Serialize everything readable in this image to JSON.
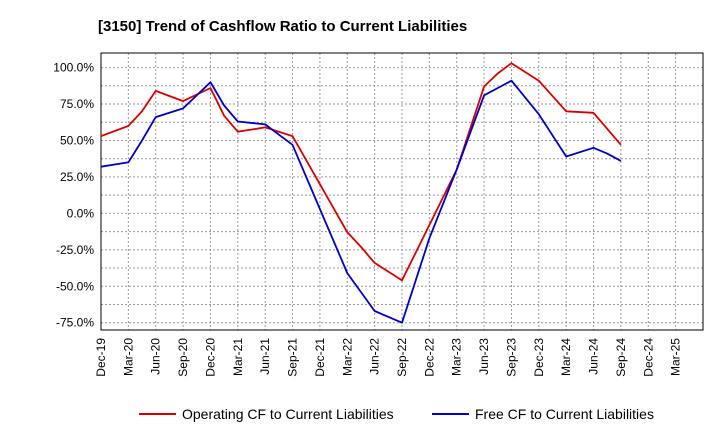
{
  "chart_data": {
    "type": "line",
    "title": "[3150]  Trend of Cashflow Ratio to Current Liabilities",
    "xlabel": "",
    "ylabel": "",
    "x": [
      "Dec-19",
      "Mar-20",
      "Jun-20",
      "Sep-20",
      "Dec-20",
      "Mar-21",
      "Jun-21",
      "Sep-21",
      "Dec-21",
      "Mar-22",
      "Jun-22",
      "Sep-22",
      "Dec-22",
      "Mar-23",
      "Jun-23",
      "Sep-23",
      "Dec-23",
      "Mar-24",
      "Jun-24",
      "Sep-24",
      "Dec-24",
      "Mar-25"
    ],
    "x_ticks": [
      "Dec-19",
      "Mar-20",
      "Jun-20",
      "Sep-20",
      "Dec-20",
      "Mar-21",
      "Jun-21",
      "Sep-21",
      "Dec-21",
      "Mar-22",
      "Jun-22",
      "Sep-22",
      "Dec-22",
      "Mar-23",
      "Jun-23",
      "Sep-23",
      "Dec-23",
      "Mar-24",
      "Jun-24",
      "Sep-24",
      "Dec-24",
      "Mar-25"
    ],
    "y_ticks": [
      "100.0%",
      "75.0%",
      "50.0%",
      "25.0%",
      "0.0%",
      "-25.0%",
      "-50.0%",
      "-75.0%"
    ],
    "y_tick_values": [
      100,
      75,
      50,
      25,
      0,
      -25,
      -50,
      -75
    ],
    "ylim": [
      -80,
      110
    ],
    "grid": true,
    "legend_position": "bottom",
    "series": [
      {
        "name": "Operating CF to Current Liabilities",
        "color": "#dd0000",
        "points": [
          [
            0,
            53
          ],
          [
            1,
            60
          ],
          [
            1.5,
            70
          ],
          [
            2,
            84
          ],
          [
            3,
            77
          ],
          [
            4,
            86
          ],
          [
            4.5,
            67
          ],
          [
            5,
            56
          ],
          [
            6,
            59
          ],
          [
            7,
            53
          ],
          [
            8,
            20
          ],
          [
            9,
            -13
          ],
          [
            9.5,
            -23
          ],
          [
            10,
            -34
          ],
          [
            11,
            -46
          ],
          [
            12,
            -8
          ],
          [
            13,
            30
          ],
          [
            14,
            87
          ],
          [
            14.5,
            96
          ],
          [
            15,
            103
          ],
          [
            16,
            91
          ],
          [
            17,
            70
          ],
          [
            18,
            69
          ],
          [
            18.5,
            58
          ],
          [
            19,
            47
          ]
        ]
      },
      {
        "name": "Free CF to Current Liabilities",
        "color": "#0000cc",
        "points": [
          [
            0,
            32
          ],
          [
            1,
            35
          ],
          [
            1.5,
            50
          ],
          [
            2,
            66
          ],
          [
            3,
            72
          ],
          [
            4,
            90
          ],
          [
            4.5,
            74
          ],
          [
            5,
            63
          ],
          [
            6,
            61
          ],
          [
            7,
            47
          ],
          [
            8,
            3
          ],
          [
            9,
            -41
          ],
          [
            9.5,
            -54
          ],
          [
            10,
            -67
          ],
          [
            11,
            -75
          ],
          [
            12,
            -17
          ],
          [
            13,
            30
          ],
          [
            14,
            81
          ],
          [
            14.5,
            86
          ],
          [
            15,
            91
          ],
          [
            16,
            68
          ],
          [
            17,
            39
          ],
          [
            18,
            45
          ],
          [
            18.5,
            41
          ],
          [
            19,
            36
          ]
        ]
      }
    ]
  }
}
